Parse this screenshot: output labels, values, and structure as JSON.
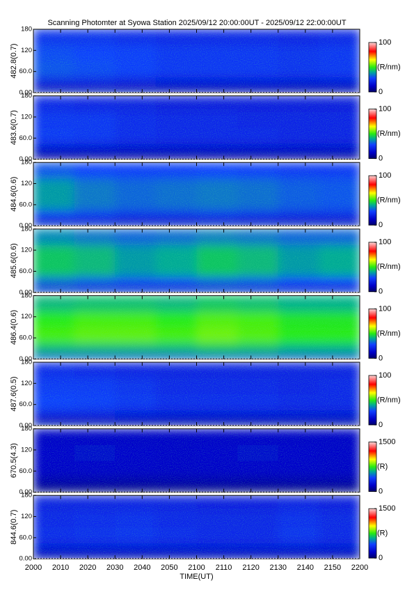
{
  "chart_data": [
    {
      "type": "heatmap",
      "title": "Scanning Photomter at Syowa Station 2025/09/12 20:00:00UT - 2025/09/12 22:00:00UT",
      "ylabel": "482.8(0.7)",
      "xlim": [
        0,
        120
      ],
      "ylim": [
        0,
        180
      ],
      "yticks": [
        {
          "value": 0,
          "label": "0.00"
        },
        {
          "value": 60,
          "label": "60.0"
        },
        120,
        180
      ],
      "xbins": [
        0,
        15,
        30,
        45,
        60,
        75,
        90,
        105,
        120
      ],
      "ybins": [
        0,
        15,
        45,
        90,
        135,
        180
      ],
      "values": [
        [
          8,
          8,
          8,
          7,
          7,
          7,
          7,
          7
        ],
        [
          20,
          20,
          19,
          18,
          18,
          18,
          17,
          18
        ],
        [
          30,
          29,
          27,
          25,
          25,
          25,
          24,
          25
        ],
        [
          29,
          28,
          27,
          25,
          25,
          25,
          24,
          25
        ],
        [
          24,
          24,
          23,
          22,
          22,
          22,
          21,
          22
        ]
      ],
      "clim": [
        0,
        100
      ],
      "cticks": [
        0,
        100
      ],
      "clabel": "(R/nm)"
    },
    {
      "type": "heatmap",
      "ylabel": "483.6(0.7)",
      "xlim": [
        0,
        120
      ],
      "ylim": [
        0,
        180
      ],
      "yticks": [
        {
          "value": 0,
          "label": "0.00"
        },
        {
          "value": 60,
          "label": "60.0"
        },
        120,
        180
      ],
      "xbins": [
        0,
        15,
        30,
        45,
        60,
        75,
        90,
        105,
        120
      ],
      "ybins": [
        0,
        15,
        45,
        90,
        135,
        180
      ],
      "values": [
        [
          5,
          5,
          5,
          5,
          5,
          5,
          5,
          5
        ],
        [
          16,
          16,
          15,
          15,
          15,
          15,
          15,
          15
        ],
        [
          26,
          25,
          23,
          22,
          22,
          22,
          21,
          21
        ],
        [
          25,
          25,
          23,
          22,
          22,
          21,
          21,
          21
        ],
        [
          22,
          21,
          20,
          19,
          19,
          19,
          19,
          19
        ]
      ],
      "clim": [
        0,
        100
      ],
      "cticks": [
        0,
        100
      ],
      "clabel": "(R/nm)"
    },
    {
      "type": "heatmap",
      "ylabel": "484.6(0.6)",
      "xlim": [
        0,
        120
      ],
      "ylim": [
        0,
        180
      ],
      "yticks": [
        {
          "value": 0,
          "label": "0.00"
        },
        {
          "value": 60,
          "label": "60.0"
        },
        120,
        180
      ],
      "xbins": [
        0,
        15,
        30,
        45,
        60,
        75,
        90,
        105,
        120
      ],
      "ybins": [
        0,
        15,
        45,
        90,
        135,
        180
      ],
      "values": [
        [
          10,
          10,
          9,
          9,
          9,
          9,
          9,
          9
        ],
        [
          26,
          25,
          23,
          23,
          24,
          23,
          22,
          22
        ],
        [
          38,
          34,
          32,
          33,
          34,
          33,
          31,
          30
        ],
        [
          38,
          34,
          32,
          33,
          34,
          33,
          31,
          30
        ],
        [
          30,
          28,
          27,
          27,
          28,
          27,
          26,
          26
        ]
      ],
      "clim": [
        0,
        100
      ],
      "cticks": [
        0,
        100
      ],
      "clabel": "(R/nm)"
    },
    {
      "type": "heatmap",
      "ylabel": "485.6(0.6)",
      "xlim": [
        0,
        120
      ],
      "ylim": [
        0,
        180
      ],
      "yticks": [
        {
          "value": 0,
          "label": "0.00"
        },
        {
          "value": 60,
          "label": "60.0"
        },
        120,
        180
      ],
      "xbins": [
        0,
        15,
        30,
        45,
        60,
        75,
        90,
        105,
        120
      ],
      "ybins": [
        0,
        15,
        45,
        90,
        135,
        180
      ],
      "values": [
        [
          12,
          11,
          11,
          11,
          11,
          11,
          11,
          11
        ],
        [
          32,
          30,
          29,
          29,
          31,
          30,
          28,
          28
        ],
        [
          44,
          42,
          38,
          40,
          44,
          42,
          38,
          40
        ],
        [
          44,
          42,
          38,
          40,
          44,
          42,
          38,
          40
        ],
        [
          36,
          34,
          32,
          33,
          35,
          34,
          32,
          32
        ]
      ],
      "clim": [
        0,
        100
      ],
      "cticks": [
        0,
        100
      ],
      "clabel": "(R/nm)"
    },
    {
      "type": "heatmap",
      "ylabel": "486.4(0.6)",
      "xlim": [
        0,
        120
      ],
      "ylim": [
        0,
        180
      ],
      "yticks": [
        {
          "value": 0,
          "label": "0.00"
        },
        {
          "value": 60,
          "label": "60.0"
        },
        120,
        180
      ],
      "xbins": [
        0,
        15,
        30,
        45,
        60,
        75,
        90,
        105,
        120
      ],
      "ybins": [
        0,
        15,
        45,
        90,
        135,
        180
      ],
      "values": [
        [
          15,
          14,
          14,
          14,
          14,
          14,
          14,
          14
        ],
        [
          42,
          42,
          42,
          42,
          44,
          43,
          41,
          41
        ],
        [
          52,
          54,
          54,
          52,
          55,
          53,
          50,
          50
        ],
        [
          50,
          52,
          52,
          50,
          53,
          52,
          49,
          49
        ],
        [
          42,
          43,
          43,
          42,
          44,
          43,
          41,
          41
        ]
      ],
      "clim": [
        0,
        100
      ],
      "cticks": [
        0,
        100
      ],
      "clabel": "(R/nm)"
    },
    {
      "type": "heatmap",
      "ylabel": "487.6(0.5)",
      "xlim": [
        0,
        120
      ],
      "ylim": [
        0,
        180
      ],
      "yticks": [
        {
          "value": 0,
          "label": "0.00"
        },
        {
          "value": 60,
          "label": "60.0"
        },
        120,
        180
      ],
      "xbins": [
        0,
        15,
        30,
        45,
        60,
        75,
        90,
        105,
        120
      ],
      "ybins": [
        0,
        15,
        45,
        90,
        135,
        180
      ],
      "values": [
        [
          7,
          7,
          7,
          7,
          7,
          7,
          7,
          7
        ],
        [
          19,
          19,
          18,
          17,
          17,
          17,
          17,
          17
        ],
        [
          28,
          27,
          25,
          23,
          23,
          23,
          22,
          22
        ],
        [
          26,
          26,
          24,
          22,
          22,
          22,
          21,
          22
        ],
        [
          23,
          22,
          21,
          20,
          20,
          20,
          20,
          20
        ]
      ],
      "clim": [
        0,
        100
      ],
      "cticks": [
        0,
        100
      ],
      "clabel": "(R/nm)"
    },
    {
      "type": "heatmap",
      "ylabel": "670.5(4.3)",
      "xlim": [
        0,
        120
      ],
      "ylim": [
        0,
        180
      ],
      "yticks": [
        {
          "value": 0,
          "label": "0.00"
        },
        {
          "value": 60,
          "label": "60.0"
        },
        120,
        180
      ],
      "xbins": [
        0,
        15,
        30,
        45,
        60,
        75,
        90,
        105,
        120
      ],
      "ybins": [
        0,
        15,
        45,
        90,
        135,
        180
      ],
      "values": [
        [
          40,
          40,
          40,
          40,
          40,
          40,
          40,
          40
        ],
        [
          130,
          130,
          125,
          130,
          130,
          125,
          130,
          130
        ],
        [
          190,
          195,
          190,
          185,
          190,
          195,
          190,
          185
        ],
        [
          200,
          205,
          200,
          195,
          200,
          205,
          200,
          195
        ],
        [
          190,
          190,
          185,
          185,
          190,
          190,
          185,
          185
        ]
      ],
      "clim": [
        0,
        1500
      ],
      "cticks": [
        0,
        1500
      ],
      "clabel": "(R)"
    },
    {
      "type": "heatmap",
      "ylabel": "844.6(0.7)",
      "xlabel": "TIME(UT)",
      "xlim": [
        0,
        120
      ],
      "ylim": [
        0,
        180
      ],
      "yticks": [
        {
          "value": 0,
          "label": "0.00"
        },
        {
          "value": 60,
          "label": "60.0"
        },
        120,
        180
      ],
      "xticks": [
        {
          "value": 0,
          "label": "2000"
        },
        {
          "value": 10,
          "label": "2010"
        },
        {
          "value": 20,
          "label": "2020"
        },
        {
          "value": 30,
          "label": "2030"
        },
        {
          "value": 40,
          "label": "2040"
        },
        {
          "value": 50,
          "label": "2050"
        },
        {
          "value": 60,
          "label": "2100"
        },
        {
          "value": 70,
          "label": "2110"
        },
        {
          "value": 80,
          "label": "2120"
        },
        {
          "value": 90,
          "label": "2130"
        },
        {
          "value": 100,
          "label": "2140"
        },
        {
          "value": 110,
          "label": "2150"
        },
        {
          "value": 120,
          "label": "2200"
        }
      ],
      "xbins": [
        0,
        15,
        30,
        45,
        60,
        75,
        90,
        105,
        120
      ],
      "ybins": [
        0,
        15,
        45,
        90,
        135,
        180
      ],
      "values": [
        [
          120,
          120,
          115,
          120,
          120,
          115,
          120,
          120
        ],
        [
          260,
          265,
          260,
          255,
          260,
          265,
          260,
          255
        ],
        [
          340,
          350,
          360,
          340,
          330,
          330,
          360,
          330
        ],
        [
          330,
          340,
          350,
          330,
          320,
          320,
          350,
          320
        ],
        [
          300,
          305,
          310,
          300,
          295,
          295,
          310,
          295
        ]
      ],
      "clim": [
        0,
        1500
      ],
      "cticks": [
        0,
        1500
      ],
      "clabel": "(R)"
    }
  ]
}
